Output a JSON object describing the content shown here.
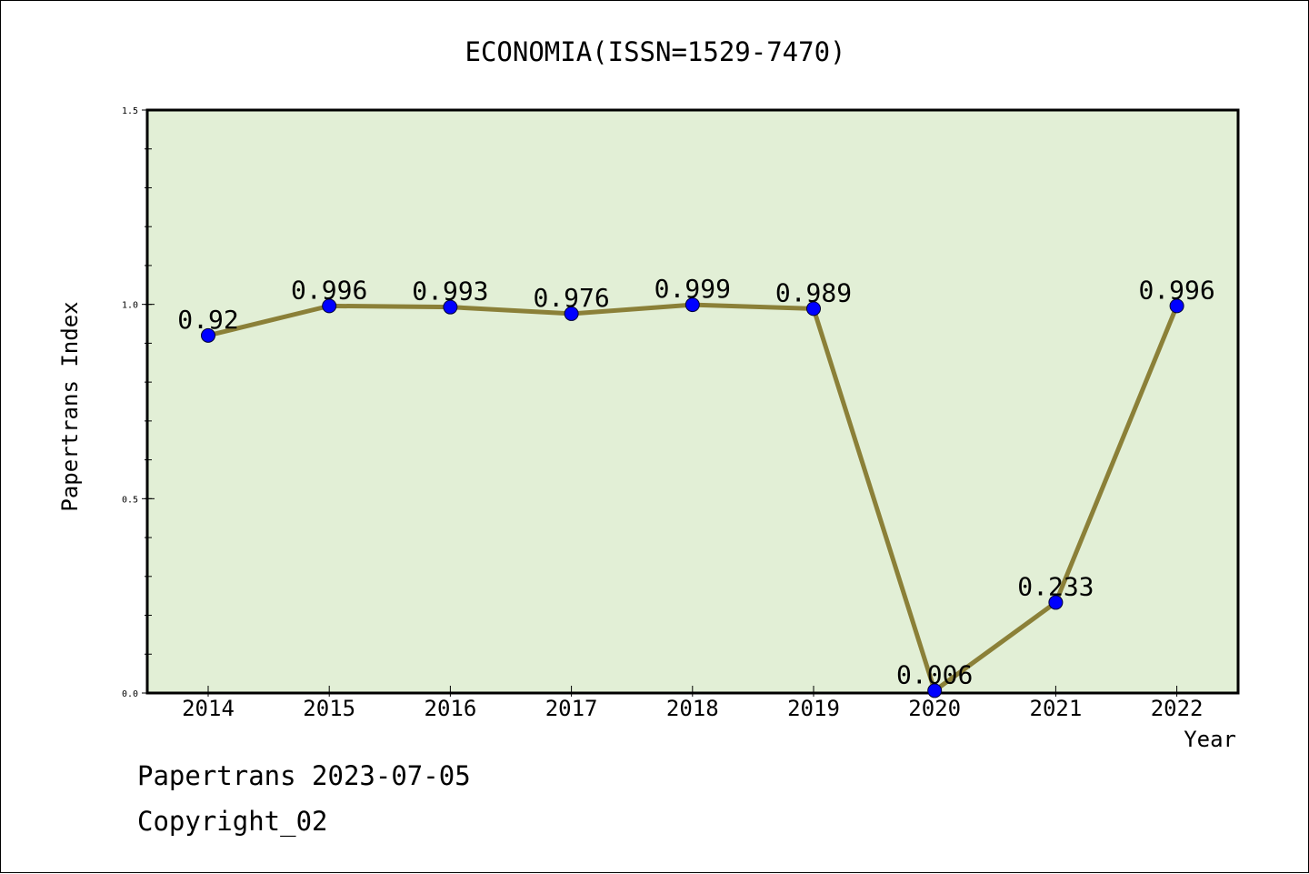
{
  "chart_data": {
    "type": "line",
    "title": "ECONOMIA(ISSN=1529-7470)",
    "xlabel": "Year",
    "ylabel": "Papertrans Index",
    "x": [
      "2014",
      "2015",
      "2016",
      "2017",
      "2018",
      "2019",
      "2020",
      "2021",
      "2022"
    ],
    "series": [
      {
        "values": [
          0.92,
          0.996,
          0.993,
          0.976,
          0.999,
          0.989,
          0.006,
          0.233,
          0.996
        ],
        "labels": [
          "0.92",
          "0.996",
          "0.993",
          "0.976",
          "0.999",
          "0.989",
          "0.006",
          "0.233",
          "0.996"
        ],
        "line_color": "#8b8038",
        "marker_color": "#0000ff"
      }
    ],
    "ylim": [
      0,
      1.5
    ],
    "yticks": [
      "0.0",
      "0.5",
      "1.0",
      "1.5"
    ],
    "plot_background": "#e2efd6",
    "grid": false,
    "legend": "none"
  },
  "footer": {
    "line1": "Papertrans 2023-07-05",
    "line2": "Copyright_02"
  }
}
